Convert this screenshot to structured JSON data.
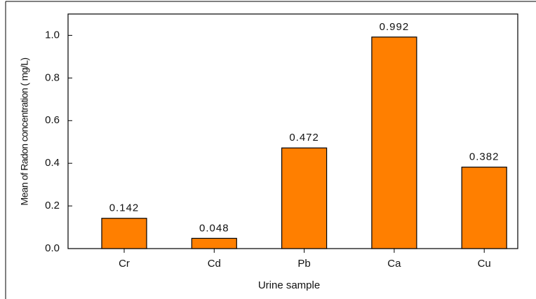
{
  "chart_data": {
    "type": "bar",
    "x_label": "Urine sample",
    "y_label": "Mean of Radon concentration ( mg/L)",
    "categories": [
      "Cr",
      "Cd",
      "Pb",
      "Ca",
      "Cu"
    ],
    "values": [
      0.142,
      0.048,
      0.472,
      0.992,
      0.382
    ],
    "color": "#ff7f00",
    "ylim": [
      0,
      1.1
    ],
    "yticks": [
      {
        "value": 0,
        "label": "0.0"
      },
      0.2,
      0.4,
      0.6,
      0.8,
      {
        "value": 1,
        "label": "1.0"
      }
    ],
    "grid": false
  }
}
